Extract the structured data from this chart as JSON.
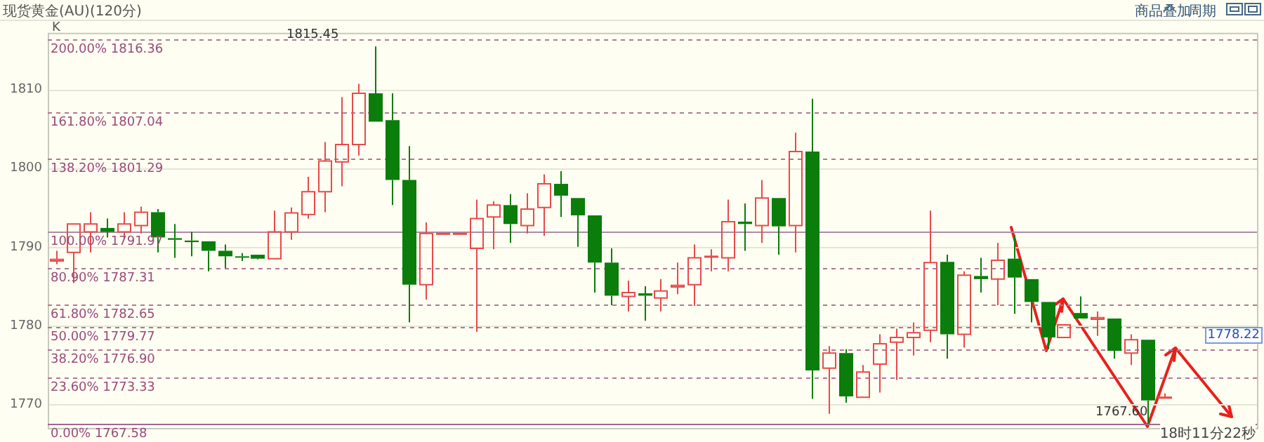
{
  "chart_data": {
    "type": "candlestick",
    "title": "现货黄金(AU)(120分)",
    "categories": [
      null,
      null,
      null,
      null,
      null,
      null,
      null,
      null,
      null,
      null,
      null,
      null,
      null,
      null,
      null,
      null,
      null,
      null,
      null,
      null,
      null,
      null,
      null,
      null,
      null,
      null,
      null,
      null,
      null,
      null,
      null,
      null,
      null,
      null,
      null,
      null,
      null,
      null,
      null,
      null,
      null,
      null,
      null,
      null,
      null,
      null,
      null,
      null,
      null,
      null,
      null,
      null,
      null,
      null,
      null,
      null,
      null,
      null,
      null,
      null,
      null,
      null,
      null,
      null,
      null,
      null,
      null,
      null,
      null,
      null,
      null,
      null
    ],
    "ohlc": [
      [
        1788.2,
        1789.5,
        1787.8,
        1788.4
      ],
      [
        1789.3,
        1792.9,
        1785.4,
        1792.9
      ],
      [
        1791.9,
        1794.4,
        1789.3,
        1792.9
      ],
      [
        1792.4,
        1793.6,
        1791.2,
        1791.9
      ],
      [
        1791.9,
        1794.4,
        1791.0,
        1792.9
      ],
      [
        1792.7,
        1795.1,
        1791.7,
        1794.4
      ],
      [
        1794.4,
        1794.8,
        1789.3,
        1791.2
      ],
      [
        1791.1,
        1792.9,
        1788.6,
        1790.9
      ],
      [
        1790.8,
        1791.9,
        1788.8,
        1790.6
      ],
      [
        1790.7,
        1790.7,
        1786.9,
        1789.5
      ],
      [
        1789.5,
        1790.3,
        1787.3,
        1788.8
      ],
      [
        1788.8,
        1789.2,
        1788.2,
        1788.7
      ],
      [
        1789.0,
        1789.0,
        1788.4,
        1788.5
      ],
      [
        1788.5,
        1794.6,
        1788.5,
        1791.9
      ],
      [
        1791.9,
        1795.0,
        1790.9,
        1794.3
      ],
      [
        1794.1,
        1798.9,
        1793.6,
        1797.0
      ],
      [
        1797.0,
        1803.3,
        1794.4,
        1800.9
      ],
      [
        1800.8,
        1809.0,
        1797.7,
        1803.0
      ],
      [
        1803.0,
        1810.7,
        1801.6,
        1809.5
      ],
      [
        1809.5,
        1815.45,
        1805.9,
        1805.9
      ],
      [
        1806.1,
        1809.5,
        1795.3,
        1798.5
      ],
      [
        1798.5,
        1802.8,
        1780.4,
        1785.2
      ],
      [
        1785.2,
        1793.1,
        1783.3,
        1791.7
      ],
      [
        1791.7,
        1791.7,
        1791.7,
        1791.7
      ],
      [
        1791.7,
        1791.7,
        1791.7,
        1791.7
      ],
      [
        1789.8,
        1796.0,
        1779.2,
        1793.6
      ],
      [
        1793.8,
        1795.8,
        1789.7,
        1795.3
      ],
      [
        1795.3,
        1796.7,
        1790.5,
        1792.9
      ],
      [
        1792.7,
        1796.8,
        1791.7,
        1794.8
      ],
      [
        1795.0,
        1799.2,
        1791.4,
        1798.0
      ],
      [
        1798.0,
        1799.6,
        1793.8,
        1796.5
      ],
      [
        1796.2,
        1796.2,
        1790.0,
        1794.0
      ],
      [
        1794.0,
        1794.0,
        1784.2,
        1788.0
      ],
      [
        1788.0,
        1789.8,
        1782.6,
        1783.8
      ],
      [
        1783.7,
        1785.7,
        1781.8,
        1784.2
      ],
      [
        1784.1,
        1785.0,
        1780.6,
        1783.8
      ],
      [
        1783.5,
        1785.9,
        1781.8,
        1784.4
      ],
      [
        1784.9,
        1788.0,
        1784.0,
        1785.1
      ],
      [
        1785.2,
        1790.3,
        1782.5,
        1788.6
      ],
      [
        1788.7,
        1789.7,
        1786.9,
        1788.8
      ],
      [
        1788.6,
        1796.0,
        1786.9,
        1793.2
      ],
      [
        1793.2,
        1795.5,
        1789.5,
        1792.9
      ],
      [
        1792.7,
        1798.5,
        1790.5,
        1796.2
      ],
      [
        1796.2,
        1796.2,
        1789.0,
        1792.6
      ],
      [
        1792.7,
        1804.5,
        1789.3,
        1802.1
      ],
      [
        1802.1,
        1808.8,
        1770.7,
        1774.3
      ],
      [
        1774.6,
        1777.4,
        1768.8,
        1776.5
      ],
      [
        1776.5,
        1777.0,
        1770.2,
        1771.0
      ],
      [
        1770.9,
        1775.0,
        1770.9,
        1774.1
      ],
      [
        1775.1,
        1778.9,
        1771.5,
        1777.7
      ],
      [
        1777.9,
        1779.6,
        1773.1,
        1778.5
      ],
      [
        1778.5,
        1780.4,
        1776.2,
        1779.1
      ],
      [
        1779.4,
        1794.6,
        1777.9,
        1788.0
      ],
      [
        1788.1,
        1789.0,
        1775.8,
        1778.9
      ],
      [
        1778.9,
        1786.9,
        1777.2,
        1786.4
      ],
      [
        1786.3,
        1788.6,
        1784.2,
        1785.9
      ],
      [
        1785.9,
        1790.5,
        1782.6,
        1788.3
      ],
      [
        1788.5,
        1791.5,
        1781.5,
        1786.1
      ],
      [
        1785.9,
        1785.9,
        1780.4,
        1783.0
      ],
      [
        1783.0,
        1783.0,
        1777.0,
        1778.5
      ],
      [
        1778.5,
        1780.1,
        1778.5,
        1780.1
      ],
      [
        1781.6,
        1783.7,
        1780.9,
        1780.9
      ],
      [
        1780.8,
        1781.8,
        1778.7,
        1781.0
      ],
      [
        1780.9,
        1780.9,
        1775.8,
        1776.8
      ],
      [
        1776.5,
        1778.9,
        1775.0,
        1778.2
      ],
      [
        1778.2,
        1778.2,
        1767.6,
        1770.5
      ],
      [
        1770.8,
        1771.4,
        1770.8,
        1770.9
      ],
      null,
      null,
      null,
      null,
      null
    ],
    "ylim": [
      1767,
      1817
    ],
    "yticks": [
      1770,
      1780,
      1790,
      1800,
      1810
    ],
    "grid": "y",
    "tick_labels": "y",
    "legend": false,
    "ref_lines": [
      {
        "axis": "y",
        "value": 1816.36,
        "label": "200.00% 1816.36",
        "color": "#b07898",
        "line_style": "dashed"
      },
      {
        "axis": "y",
        "value": 1807.04,
        "label": "161.80% 1807.04",
        "color": "#b07898",
        "line_style": "dashed"
      },
      {
        "axis": "y",
        "value": 1801.29,
        "label": "138.20% 1801.29",
        "color": "#b07898",
        "line_style": "dashed"
      },
      {
        "axis": "y",
        "value": 1791.97,
        "label": "100.00% 1791.97",
        "color": "#b08aa8",
        "line_style": "solid"
      },
      {
        "axis": "y",
        "value": 1787.31,
        "label": "80.90% 1787.31",
        "color": "#b07898",
        "line_style": "dashed"
      },
      {
        "axis": "y",
        "value": 1782.65,
        "label": "61.80% 1782.65",
        "color": "#b07898",
        "line_style": "dashed"
      },
      {
        "axis": "y",
        "value": 1779.77,
        "label": "50.00% 1779.77",
        "color": "#b07898",
        "line_style": "dashed"
      },
      {
        "axis": "y",
        "value": 1776.9,
        "label": "38.20% 1776.90",
        "color": "#b07898",
        "line_style": "dashed"
      },
      {
        "axis": "y",
        "value": 1773.33,
        "label": "23.60% 1773.33",
        "color": "#b07898",
        "line_style": "dashed"
      },
      {
        "axis": "y",
        "value": 1767.58,
        "label": "0.00% 1767.58",
        "color": "#a06890",
        "line_style": "solid"
      }
    ],
    "annotations": [
      "K",
      "商品叠加",
      "周期",
      "18时11分22秒",
      "1815.45",
      "1767.60",
      "1778.22"
    ]
  }
}
